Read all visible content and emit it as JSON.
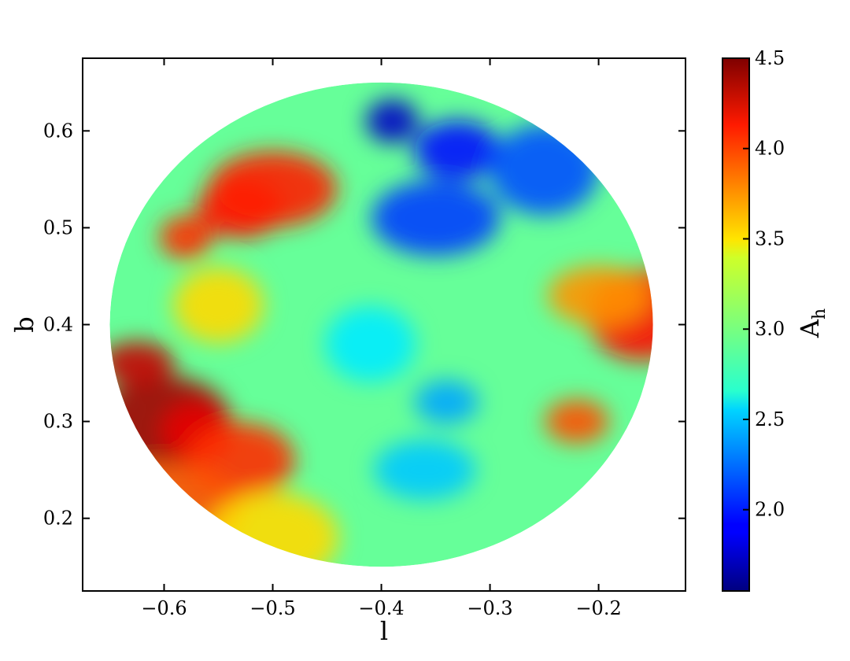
{
  "chart_data": {
    "type": "scatter",
    "title": "",
    "xlabel": "l",
    "ylabel": "b",
    "xlim": [
      -0.675,
      -0.12
    ],
    "ylim": [
      0.125,
      0.675
    ],
    "xticks": [
      "−0.6",
      "−0.5",
      "−0.4",
      "−0.3",
      "−0.2"
    ],
    "yticks": [
      "0.2",
      "0.3",
      "0.4",
      "0.5",
      "0.6"
    ],
    "xtick_values": [
      -0.6,
      -0.5,
      -0.4,
      -0.3,
      -0.2
    ],
    "ytick_values": [
      0.2,
      0.3,
      0.4,
      0.5,
      0.6
    ],
    "region": {
      "shape": "circle",
      "center_l": -0.4,
      "center_b": 0.4,
      "radius": 0.25
    },
    "colorbar": {
      "label_main": "A",
      "label_sub": "h",
      "range": [
        1.55,
        4.5
      ],
      "colormap": "jet",
      "ticks": [
        "2.0",
        "2.5",
        "3.0",
        "3.5",
        "4.0",
        "4.5"
      ],
      "tick_values": [
        2.0,
        2.5,
        3.0,
        3.5,
        4.0,
        4.5
      ]
    },
    "features": [
      {
        "l": -0.39,
        "b": 0.61,
        "value": 1.75
      },
      {
        "l": -0.33,
        "b": 0.58,
        "value": 1.95
      },
      {
        "l": -0.35,
        "b": 0.51,
        "value": 2.1
      },
      {
        "l": -0.25,
        "b": 0.56,
        "value": 2.15
      },
      {
        "l": -0.34,
        "b": 0.32,
        "value": 2.4
      },
      {
        "l": -0.36,
        "b": 0.25,
        "value": 2.5
      },
      {
        "l": -0.41,
        "b": 0.38,
        "value": 2.6
      },
      {
        "l": -0.6,
        "b": 0.3,
        "value": 4.4
      },
      {
        "l": -0.625,
        "b": 0.36,
        "value": 4.3
      },
      {
        "l": -0.57,
        "b": 0.29,
        "value": 4.2
      },
      {
        "l": -0.53,
        "b": 0.26,
        "value": 4.0
      },
      {
        "l": -0.6,
        "b": 0.21,
        "value": 3.9
      },
      {
        "l": -0.58,
        "b": 0.49,
        "value": 4.0
      },
      {
        "l": -0.53,
        "b": 0.52,
        "value": 4.1
      },
      {
        "l": -0.5,
        "b": 0.54,
        "value": 4.05
      },
      {
        "l": -0.16,
        "b": 0.41,
        "value": 4.1
      },
      {
        "l": -0.22,
        "b": 0.3,
        "value": 3.9
      },
      {
        "l": -0.2,
        "b": 0.43,
        "value": 3.7
      },
      {
        "l": -0.55,
        "b": 0.42,
        "value": 3.5
      },
      {
        "l": -0.5,
        "b": 0.18,
        "value": 3.5
      }
    ]
  }
}
